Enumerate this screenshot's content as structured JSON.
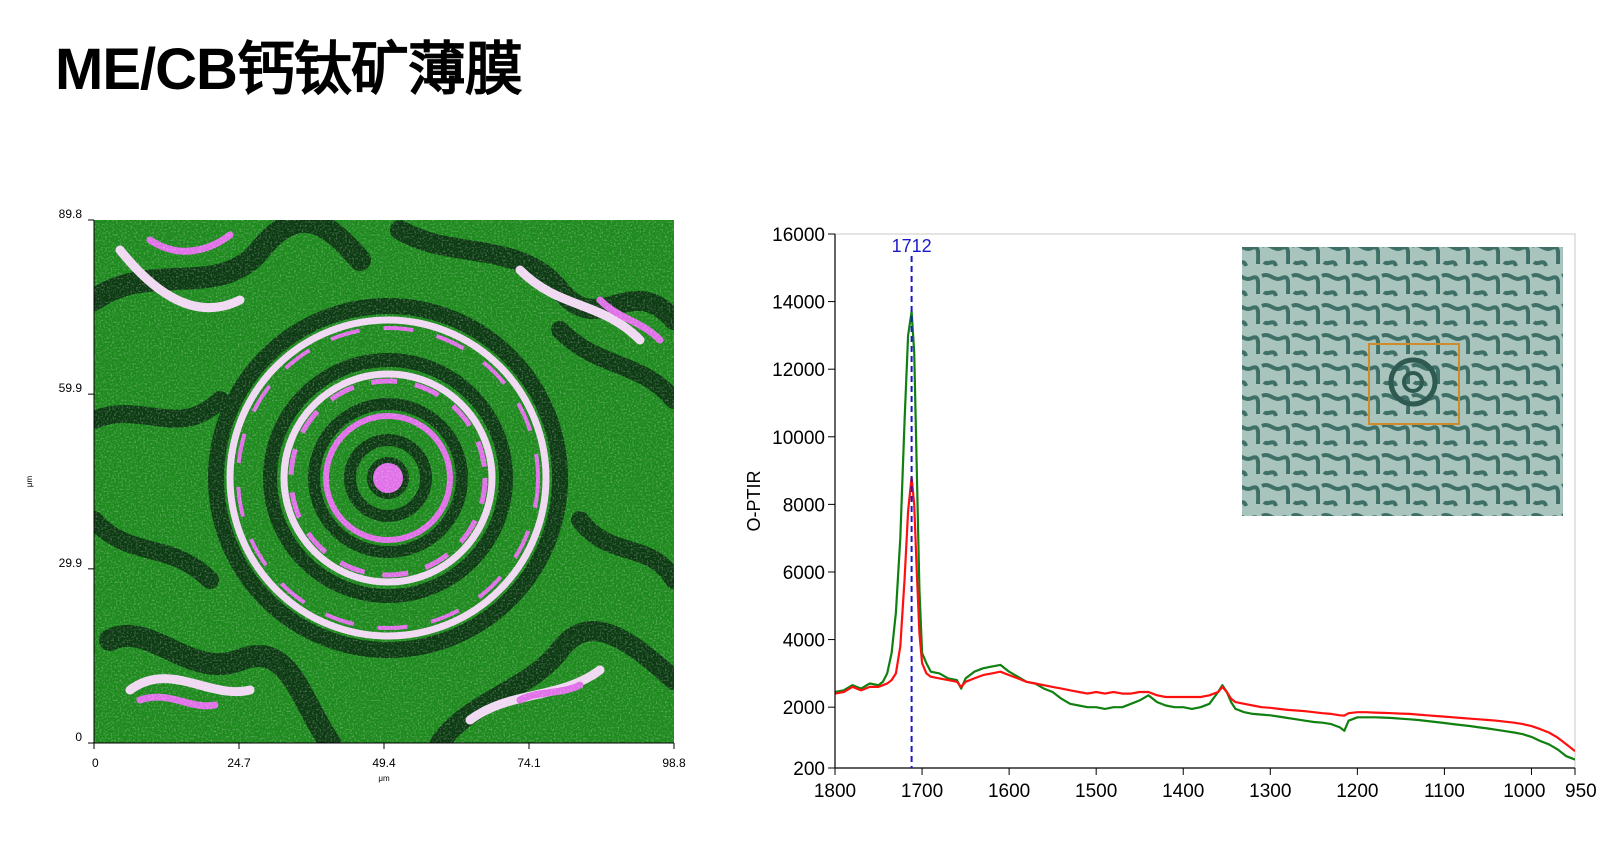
{
  "page": {
    "title": "ME/CB钙钛矿薄膜"
  },
  "colors": {
    "map_green": "#1e8a1e",
    "map_dark": "#0c3a12",
    "map_pink": "#e070e8",
    "map_light": "#f0d8f2",
    "series_red": "#ff1010",
    "series_green": "#108010",
    "marker": "#1a1acc",
    "inset_box": "#d08a2a"
  },
  "chart_data": [
    {
      "type": "heatmap",
      "x_ticks": [
        "0",
        "24.7",
        "49.4",
        "74.1",
        "98.8"
      ],
      "y_ticks": [
        "0",
        "29.9",
        "59.9",
        "89.8"
      ],
      "xlabel": "μm",
      "ylabel": "μm",
      "xlim": [
        0,
        98.8
      ],
      "ylim": [
        0,
        89.8
      ]
    },
    {
      "type": "line",
      "ylabel": "O-PTIR",
      "xlim": [
        1800,
        950
      ],
      "ylim": [
        200,
        16000
      ],
      "x_ticks": [
        1800,
        1700,
        1600,
        1500,
        1400,
        1300,
        1200,
        1100,
        1000,
        950
      ],
      "y_ticks": [
        200,
        2000,
        4000,
        6000,
        8000,
        10000,
        12000,
        14000,
        16000
      ],
      "marker_line": {
        "x": 1712,
        "label": "1712"
      },
      "series": [
        {
          "color": "#108010",
          "points": [
            [
              1800,
              2450
            ],
            [
              1790,
              2500
            ],
            [
              1780,
              2650
            ],
            [
              1770,
              2550
            ],
            [
              1760,
              2700
            ],
            [
              1750,
              2650
            ],
            [
              1745,
              2750
            ],
            [
              1740,
              3000
            ],
            [
              1735,
              3600
            ],
            [
              1730,
              4800
            ],
            [
              1725,
              7000
            ],
            [
              1720,
              10500
            ],
            [
              1716,
              13000
            ],
            [
              1712,
              13700
            ],
            [
              1709,
              12500
            ],
            [
              1706,
              9000
            ],
            [
              1703,
              5500
            ],
            [
              1700,
              3600
            ],
            [
              1695,
              3300
            ],
            [
              1690,
              3050
            ],
            [
              1680,
              3000
            ],
            [
              1670,
              2850
            ],
            [
              1660,
              2800
            ],
            [
              1655,
              2550
            ],
            [
              1650,
              2850
            ],
            [
              1640,
              3050
            ],
            [
              1630,
              3150
            ],
            [
              1620,
              3200
            ],
            [
              1610,
              3250
            ],
            [
              1600,
              3050
            ],
            [
              1590,
              2900
            ],
            [
              1580,
              2750
            ],
            [
              1570,
              2700
            ],
            [
              1560,
              2550
            ],
            [
              1550,
              2450
            ],
            [
              1540,
              2250
            ],
            [
              1530,
              2100
            ],
            [
              1520,
              2050
            ],
            [
              1510,
              2000
            ],
            [
              1500,
              2000
            ],
            [
              1490,
              1950
            ],
            [
              1480,
              2000
            ],
            [
              1470,
              2000
            ],
            [
              1460,
              2100
            ],
            [
              1450,
              2200
            ],
            [
              1440,
              2350
            ],
            [
              1430,
              2150
            ],
            [
              1420,
              2050
            ],
            [
              1410,
              2000
            ],
            [
              1400,
              2000
            ],
            [
              1390,
              1950
            ],
            [
              1380,
              2000
            ],
            [
              1370,
              2100
            ],
            [
              1360,
              2450
            ],
            [
              1355,
              2650
            ],
            [
              1350,
              2450
            ],
            [
              1345,
              2150
            ],
            [
              1340,
              1950
            ],
            [
              1330,
              1850
            ],
            [
              1320,
              1800
            ],
            [
              1310,
              1780
            ],
            [
              1300,
              1760
            ],
            [
              1290,
              1720
            ],
            [
              1280,
              1680
            ],
            [
              1270,
              1640
            ],
            [
              1260,
              1600
            ],
            [
              1250,
              1560
            ],
            [
              1240,
              1540
            ],
            [
              1230,
              1500
            ],
            [
              1220,
              1400
            ],
            [
              1215,
              1300
            ],
            [
              1210,
              1600
            ],
            [
              1200,
              1700
            ],
            [
              1190,
              1700
            ],
            [
              1180,
              1700
            ],
            [
              1170,
              1690
            ],
            [
              1160,
              1680
            ],
            [
              1150,
              1660
            ],
            [
              1140,
              1640
            ],
            [
              1130,
              1620
            ],
            [
              1120,
              1590
            ],
            [
              1110,
              1560
            ],
            [
              1100,
              1530
            ],
            [
              1090,
              1500
            ],
            [
              1080,
              1470
            ],
            [
              1070,
              1440
            ],
            [
              1060,
              1400
            ],
            [
              1050,
              1370
            ],
            [
              1040,
              1330
            ],
            [
              1030,
              1290
            ],
            [
              1020,
              1250
            ],
            [
              1010,
              1200
            ],
            [
              1000,
              1120
            ],
            [
              990,
              1000
            ],
            [
              980,
              900
            ],
            [
              970,
              750
            ],
            [
              960,
              550
            ],
            [
              950,
              450
            ]
          ]
        },
        {
          "color": "#ff1010",
          "points": [
            [
              1800,
              2400
            ],
            [
              1790,
              2450
            ],
            [
              1780,
              2600
            ],
            [
              1770,
              2500
            ],
            [
              1760,
              2600
            ],
            [
              1750,
              2600
            ],
            [
              1745,
              2650
            ],
            [
              1740,
              2700
            ],
            [
              1735,
              2800
            ],
            [
              1730,
              3000
            ],
            [
              1725,
              3800
            ],
            [
              1720,
              5800
            ],
            [
              1716,
              7800
            ],
            [
              1712,
              8800
            ],
            [
              1709,
              8000
            ],
            [
              1706,
              6000
            ],
            [
              1703,
              4200
            ],
            [
              1700,
              3300
            ],
            [
              1695,
              3000
            ],
            [
              1690,
              2900
            ],
            [
              1680,
              2850
            ],
            [
              1670,
              2800
            ],
            [
              1660,
              2750
            ],
            [
              1655,
              2600
            ],
            [
              1650,
              2750
            ],
            [
              1640,
              2850
            ],
            [
              1630,
              2950
            ],
            [
              1620,
              3000
            ],
            [
              1610,
              3050
            ],
            [
              1600,
              2950
            ],
            [
              1590,
              2850
            ],
            [
              1580,
              2750
            ],
            [
              1570,
              2700
            ],
            [
              1560,
              2650
            ],
            [
              1550,
              2600
            ],
            [
              1540,
              2550
            ],
            [
              1530,
              2500
            ],
            [
              1520,
              2450
            ],
            [
              1510,
              2400
            ],
            [
              1500,
              2450
            ],
            [
              1490,
              2400
            ],
            [
              1480,
              2450
            ],
            [
              1470,
              2400
            ],
            [
              1460,
              2400
            ],
            [
              1450,
              2450
            ],
            [
              1440,
              2450
            ],
            [
              1430,
              2350
            ],
            [
              1420,
              2300
            ],
            [
              1410,
              2300
            ],
            [
              1400,
              2300
            ],
            [
              1390,
              2300
            ],
            [
              1380,
              2300
            ],
            [
              1370,
              2350
            ],
            [
              1360,
              2450
            ],
            [
              1355,
              2600
            ],
            [
              1350,
              2450
            ],
            [
              1345,
              2250
            ],
            [
              1340,
              2150
            ],
            [
              1330,
              2100
            ],
            [
              1320,
              2050
            ],
            [
              1310,
              2000
            ],
            [
              1300,
              1980
            ],
            [
              1290,
              1950
            ],
            [
              1280,
              1920
            ],
            [
              1270,
              1900
            ],
            [
              1260,
              1880
            ],
            [
              1250,
              1850
            ],
            [
              1240,
              1820
            ],
            [
              1230,
              1800
            ],
            [
              1220,
              1760
            ],
            [
              1215,
              1750
            ],
            [
              1210,
              1820
            ],
            [
              1200,
              1850
            ],
            [
              1190,
              1850
            ],
            [
              1180,
              1840
            ],
            [
              1170,
              1830
            ],
            [
              1160,
              1820
            ],
            [
              1150,
              1810
            ],
            [
              1140,
              1800
            ],
            [
              1130,
              1780
            ],
            [
              1120,
              1760
            ],
            [
              1110,
              1740
            ],
            [
              1100,
              1720
            ],
            [
              1090,
              1700
            ],
            [
              1080,
              1680
            ],
            [
              1070,
              1660
            ],
            [
              1060,
              1640
            ],
            [
              1050,
              1620
            ],
            [
              1040,
              1600
            ],
            [
              1030,
              1570
            ],
            [
              1020,
              1540
            ],
            [
              1010,
              1500
            ],
            [
              1000,
              1440
            ],
            [
              990,
              1350
            ],
            [
              980,
              1250
            ],
            [
              970,
              1100
            ],
            [
              960,
              900
            ],
            [
              950,
              700
            ]
          ]
        }
      ]
    }
  ]
}
